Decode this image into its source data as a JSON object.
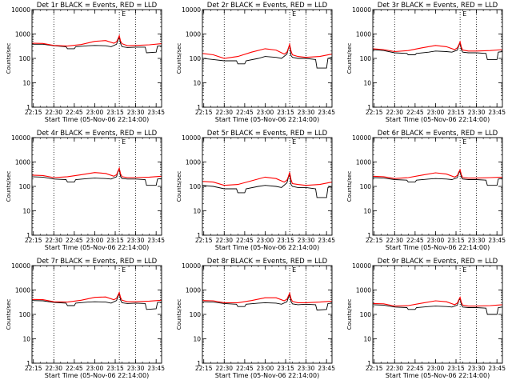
{
  "xlabel": "Start Time (05-Nov-06 22:14:00)",
  "ylabel": "Counts/sec",
  "x_ticks": [
    "22:15",
    "22:30",
    "22:45",
    "23:00",
    "23:15",
    "23:30",
    "23:45"
  ],
  "y_ticks": [
    "1",
    "10",
    "100",
    "1000",
    "10000"
  ],
  "marker_label": "E",
  "colors": {
    "events": "#000000",
    "lld": "#ff0000",
    "axes": "#000000"
  },
  "chart_data": [
    {
      "type": "line",
      "title": "Det 1r BLACK = Events, RED = LLD",
      "xlim": [
        "22:14",
        "23:49"
      ],
      "ylim": [
        1,
        10000
      ],
      "yscale": "log",
      "vlines": [
        "22:30",
        "23:18",
        "23:30"
      ],
      "series": [
        {
          "name": "Events",
          "x": [
            "22:14",
            "22:22",
            "22:30",
            "22:39",
            "22:40",
            "22:45",
            "22:46",
            "22:55",
            "23:00",
            "23:08",
            "23:12",
            "23:16",
            "23:17",
            "23:18",
            "23:19",
            "23:20",
            "23:24",
            "23:30",
            "23:37",
            "23:38",
            "23:45",
            "23:46",
            "23:49"
          ],
          "y": [
            380,
            380,
            330,
            300,
            250,
            250,
            300,
            330,
            340,
            330,
            300,
            380,
            550,
            750,
            400,
            300,
            280,
            290,
            290,
            170,
            180,
            320,
            330
          ]
        },
        {
          "name": "LLD",
          "x": [
            "22:14",
            "22:22",
            "22:30",
            "22:40",
            "22:50",
            "23:00",
            "23:08",
            "23:14",
            "23:16",
            "23:17",
            "23:18",
            "23:19",
            "23:20",
            "23:24",
            "23:30",
            "23:40",
            "23:49"
          ],
          "y": [
            420,
            410,
            340,
            320,
            370,
            500,
            540,
            420,
            480,
            620,
            850,
            500,
            400,
            330,
            340,
            360,
            400
          ]
        }
      ]
    },
    {
      "type": "line",
      "title": "Det 2r BLACK = Events, RED = LLD",
      "xlim": [
        "22:14",
        "23:49"
      ],
      "ylim": [
        1,
        10000
      ],
      "yscale": "log",
      "vlines": [
        "22:30",
        "23:18",
        "23:30"
      ],
      "series": [
        {
          "name": "Events",
          "x": [
            "22:14",
            "22:22",
            "22:30",
            "22:39",
            "22:40",
            "22:45",
            "22:46",
            "22:55",
            "23:00",
            "23:08",
            "23:12",
            "23:16",
            "23:17",
            "23:18",
            "23:19",
            "23:20",
            "23:24",
            "23:30",
            "23:37",
            "23:38",
            "23:45",
            "23:46",
            "23:49"
          ],
          "y": [
            100,
            90,
            80,
            80,
            60,
            60,
            80,
            100,
            120,
            110,
            100,
            150,
            250,
            350,
            130,
            110,
            100,
            100,
            90,
            40,
            40,
            100,
            110
          ]
        },
        {
          "name": "LLD",
          "x": [
            "22:14",
            "22:22",
            "22:30",
            "22:40",
            "22:50",
            "23:00",
            "23:08",
            "23:14",
            "23:16",
            "23:17",
            "23:18",
            "23:19",
            "23:20",
            "23:24",
            "23:30",
            "23:40",
            "23:49"
          ],
          "y": [
            160,
            140,
            100,
            120,
            180,
            250,
            220,
            150,
            180,
            260,
            380,
            200,
            140,
            120,
            110,
            120,
            150
          ]
        }
      ]
    },
    {
      "type": "line",
      "title": "Det 3r BLACK = Events, RED = LLD",
      "xlim": [
        "22:14",
        "23:49"
      ],
      "ylim": [
        1,
        10000
      ],
      "yscale": "log",
      "vlines": [
        "22:30",
        "23:18",
        "23:30"
      ],
      "series": [
        {
          "name": "Events",
          "x": [
            "22:14",
            "22:22",
            "22:30",
            "22:39",
            "22:40",
            "22:45",
            "22:46",
            "22:55",
            "23:00",
            "23:08",
            "23:12",
            "23:16",
            "23:17",
            "23:18",
            "23:19",
            "23:20",
            "23:24",
            "23:30",
            "23:37",
            "23:38",
            "23:45",
            "23:46",
            "23:49"
          ],
          "y": [
            230,
            210,
            170,
            160,
            140,
            140,
            160,
            180,
            200,
            190,
            180,
            220,
            330,
            420,
            220,
            180,
            170,
            170,
            160,
            90,
            90,
            180,
            190
          ]
        },
        {
          "name": "LLD",
          "x": [
            "22:14",
            "22:22",
            "22:30",
            "22:40",
            "22:50",
            "23:00",
            "23:08",
            "23:14",
            "23:16",
            "23:17",
            "23:18",
            "23:19",
            "23:20",
            "23:24",
            "23:30",
            "23:40",
            "23:49"
          ],
          "y": [
            250,
            230,
            190,
            210,
            270,
            340,
            300,
            230,
            270,
            350,
            480,
            280,
            220,
            200,
            200,
            210,
            230
          ]
        }
      ]
    },
    {
      "type": "line",
      "title": "Det 4r BLACK = Events, RED = LLD",
      "xlim": [
        "22:14",
        "23:49"
      ],
      "ylim": [
        1,
        10000
      ],
      "yscale": "log",
      "vlines": [
        "22:30",
        "23:18",
        "23:30"
      ],
      "series": [
        {
          "name": "Events",
          "x": [
            "22:14",
            "22:22",
            "22:30",
            "22:39",
            "22:40",
            "22:45",
            "22:46",
            "22:55",
            "23:00",
            "23:08",
            "23:12",
            "23:16",
            "23:17",
            "23:18",
            "23:19",
            "23:20",
            "23:24",
            "23:30",
            "23:37",
            "23:38",
            "23:45",
            "23:46",
            "23:49"
          ],
          "y": [
            250,
            240,
            200,
            190,
            150,
            150,
            190,
            210,
            220,
            210,
            200,
            250,
            400,
            500,
            250,
            210,
            200,
            200,
            190,
            110,
            110,
            200,
            210
          ]
        },
        {
          "name": "LLD",
          "x": [
            "22:14",
            "22:22",
            "22:30",
            "22:40",
            "22:50",
            "23:00",
            "23:08",
            "23:14",
            "23:16",
            "23:17",
            "23:18",
            "23:19",
            "23:20",
            "23:24",
            "23:30",
            "23:40",
            "23:49"
          ],
          "y": [
            290,
            280,
            230,
            250,
            300,
            370,
            340,
            260,
            300,
            420,
            560,
            320,
            250,
            230,
            230,
            240,
            260
          ]
        }
      ]
    },
    {
      "type": "line",
      "title": "Det 5r BLACK = Events, RED = LLD",
      "xlim": [
        "22:14",
        "23:49"
      ],
      "ylim": [
        1,
        10000
      ],
      "yscale": "log",
      "vlines": [
        "22:30",
        "23:18",
        "23:30"
      ],
      "series": [
        {
          "name": "Events",
          "x": [
            "22:14",
            "22:22",
            "22:30",
            "22:39",
            "22:40",
            "22:45",
            "22:46",
            "22:55",
            "23:00",
            "23:08",
            "23:12",
            "23:16",
            "23:17",
            "23:18",
            "23:19",
            "23:20",
            "23:24",
            "23:30",
            "23:37",
            "23:38",
            "23:45",
            "23:46",
            "23:49"
          ],
          "y": [
            110,
            100,
            80,
            80,
            55,
            55,
            80,
            100,
            110,
            100,
            90,
            140,
            230,
            320,
            120,
            100,
            90,
            90,
            80,
            35,
            35,
            90,
            100
          ]
        },
        {
          "name": "LLD",
          "x": [
            "22:14",
            "22:22",
            "22:30",
            "22:40",
            "22:50",
            "23:00",
            "23:08",
            "23:14",
            "23:16",
            "23:17",
            "23:18",
            "23:19",
            "23:20",
            "23:24",
            "23:30",
            "23:40",
            "23:49"
          ],
          "y": [
            160,
            150,
            110,
            120,
            170,
            240,
            210,
            150,
            180,
            250,
            380,
            190,
            130,
            120,
            110,
            120,
            150
          ]
        }
      ]
    },
    {
      "type": "line",
      "title": "Det 6r BLACK = Events, RED = LLD",
      "xlim": [
        "22:14",
        "23:49"
      ],
      "ylim": [
        1,
        10000
      ],
      "yscale": "log",
      "vlines": [
        "22:30",
        "23:18",
        "23:30"
      ],
      "series": [
        {
          "name": "Events",
          "x": [
            "22:14",
            "22:22",
            "22:30",
            "22:39",
            "22:40",
            "22:45",
            "22:46",
            "22:55",
            "23:00",
            "23:08",
            "23:12",
            "23:16",
            "23:17",
            "23:18",
            "23:19",
            "23:20",
            "23:24",
            "23:30",
            "23:37",
            "23:38",
            "23:45",
            "23:46",
            "23:49"
          ],
          "y": [
            230,
            220,
            190,
            180,
            150,
            150,
            180,
            200,
            210,
            200,
            190,
            230,
            350,
            420,
            230,
            200,
            190,
            190,
            180,
            110,
            110,
            200,
            210
          ]
        },
        {
          "name": "LLD",
          "x": [
            "22:14",
            "22:22",
            "22:30",
            "22:40",
            "22:50",
            "23:00",
            "23:08",
            "23:14",
            "23:16",
            "23:17",
            "23:18",
            "23:19",
            "23:20",
            "23:24",
            "23:30",
            "23:40",
            "23:49"
          ],
          "y": [
            260,
            250,
            210,
            230,
            290,
            360,
            320,
            240,
            280,
            380,
            480,
            290,
            230,
            220,
            220,
            230,
            240
          ]
        }
      ]
    },
    {
      "type": "line",
      "title": "Det 7r BLACK = Events, RED = LLD",
      "xlim": [
        "22:14",
        "23:49"
      ],
      "ylim": [
        1,
        10000
      ],
      "yscale": "log",
      "vlines": [
        "22:30",
        "23:18",
        "23:30"
      ],
      "series": [
        {
          "name": "Events",
          "x": [
            "22:14",
            "22:22",
            "22:30",
            "22:39",
            "22:40",
            "22:45",
            "22:46",
            "22:55",
            "23:00",
            "23:08",
            "23:12",
            "23:16",
            "23:17",
            "23:18",
            "23:19",
            "23:20",
            "23:24",
            "23:30",
            "23:37",
            "23:38",
            "23:45",
            "23:46",
            "23:49"
          ],
          "y": [
            370,
            360,
            310,
            290,
            230,
            230,
            290,
            320,
            330,
            320,
            290,
            370,
            530,
            700,
            380,
            300,
            280,
            290,
            280,
            160,
            170,
            310,
            320
          ]
        },
        {
          "name": "LLD",
          "x": [
            "22:14",
            "22:22",
            "22:30",
            "22:40",
            "22:50",
            "23:00",
            "23:08",
            "23:14",
            "23:16",
            "23:17",
            "23:18",
            "23:19",
            "23:20",
            "23:24",
            "23:30",
            "23:40",
            "23:49"
          ],
          "y": [
            410,
            400,
            330,
            320,
            380,
            500,
            520,
            400,
            460,
            600,
            800,
            480,
            380,
            330,
            330,
            350,
            380
          ]
        }
      ]
    },
    {
      "type": "line",
      "title": "Det 8r BLACK = Events, RED = LLD",
      "xlim": [
        "22:14",
        "23:49"
      ],
      "ylim": [
        1,
        10000
      ],
      "yscale": "log",
      "vlines": [
        "22:30",
        "23:18",
        "23:30"
      ],
      "series": [
        {
          "name": "Events",
          "x": [
            "22:14",
            "22:22",
            "22:30",
            "22:39",
            "22:40",
            "22:45",
            "22:46",
            "22:55",
            "23:00",
            "23:08",
            "23:12",
            "23:16",
            "23:17",
            "23:18",
            "23:19",
            "23:20",
            "23:24",
            "23:30",
            "23:37",
            "23:38",
            "23:45",
            "23:46",
            "23:49"
          ],
          "y": [
            330,
            320,
            280,
            260,
            210,
            210,
            260,
            290,
            300,
            290,
            260,
            330,
            480,
            650,
            340,
            270,
            250,
            260,
            250,
            150,
            160,
            280,
            290
          ]
        },
        {
          "name": "LLD",
          "x": [
            "22:14",
            "22:22",
            "22:30",
            "22:40",
            "22:50",
            "23:00",
            "23:08",
            "23:14",
            "23:16",
            "23:17",
            "23:18",
            "23:19",
            "23:20",
            "23:24",
            "23:30",
            "23:40",
            "23:49"
          ],
          "y": [
            370,
            360,
            300,
            300,
            370,
            480,
            480,
            360,
            420,
            560,
            750,
            440,
            340,
            300,
            300,
            320,
            350
          ]
        }
      ]
    },
    {
      "type": "line",
      "title": "Det 9r BLACK = Events, RED = LLD",
      "xlim": [
        "22:14",
        "23:49"
      ],
      "ylim": [
        1,
        10000
      ],
      "yscale": "log",
      "vlines": [
        "22:30",
        "23:18",
        "23:30"
      ],
      "series": [
        {
          "name": "Events",
          "x": [
            "22:14",
            "22:22",
            "22:30",
            "22:39",
            "22:40",
            "22:45",
            "22:46",
            "22:55",
            "23:00",
            "23:08",
            "23:12",
            "23:16",
            "23:17",
            "23:18",
            "23:19",
            "23:20",
            "23:24",
            "23:30",
            "23:37",
            "23:38",
            "23:45",
            "23:46",
            "23:49"
          ],
          "y": [
            250,
            240,
            200,
            190,
            160,
            160,
            190,
            210,
            220,
            210,
            200,
            240,
            360,
            450,
            240,
            200,
            190,
            190,
            180,
            100,
            100,
            190,
            200
          ]
        },
        {
          "name": "LLD",
          "x": [
            "22:14",
            "22:22",
            "22:30",
            "22:40",
            "22:50",
            "23:00",
            "23:08",
            "23:14",
            "23:16",
            "23:17",
            "23:18",
            "23:19",
            "23:20",
            "23:24",
            "23:30",
            "23:40",
            "23:49"
          ],
          "y": [
            280,
            270,
            220,
            230,
            290,
            360,
            330,
            250,
            290,
            390,
            500,
            300,
            240,
            220,
            220,
            230,
            250
          ]
        }
      ]
    }
  ]
}
